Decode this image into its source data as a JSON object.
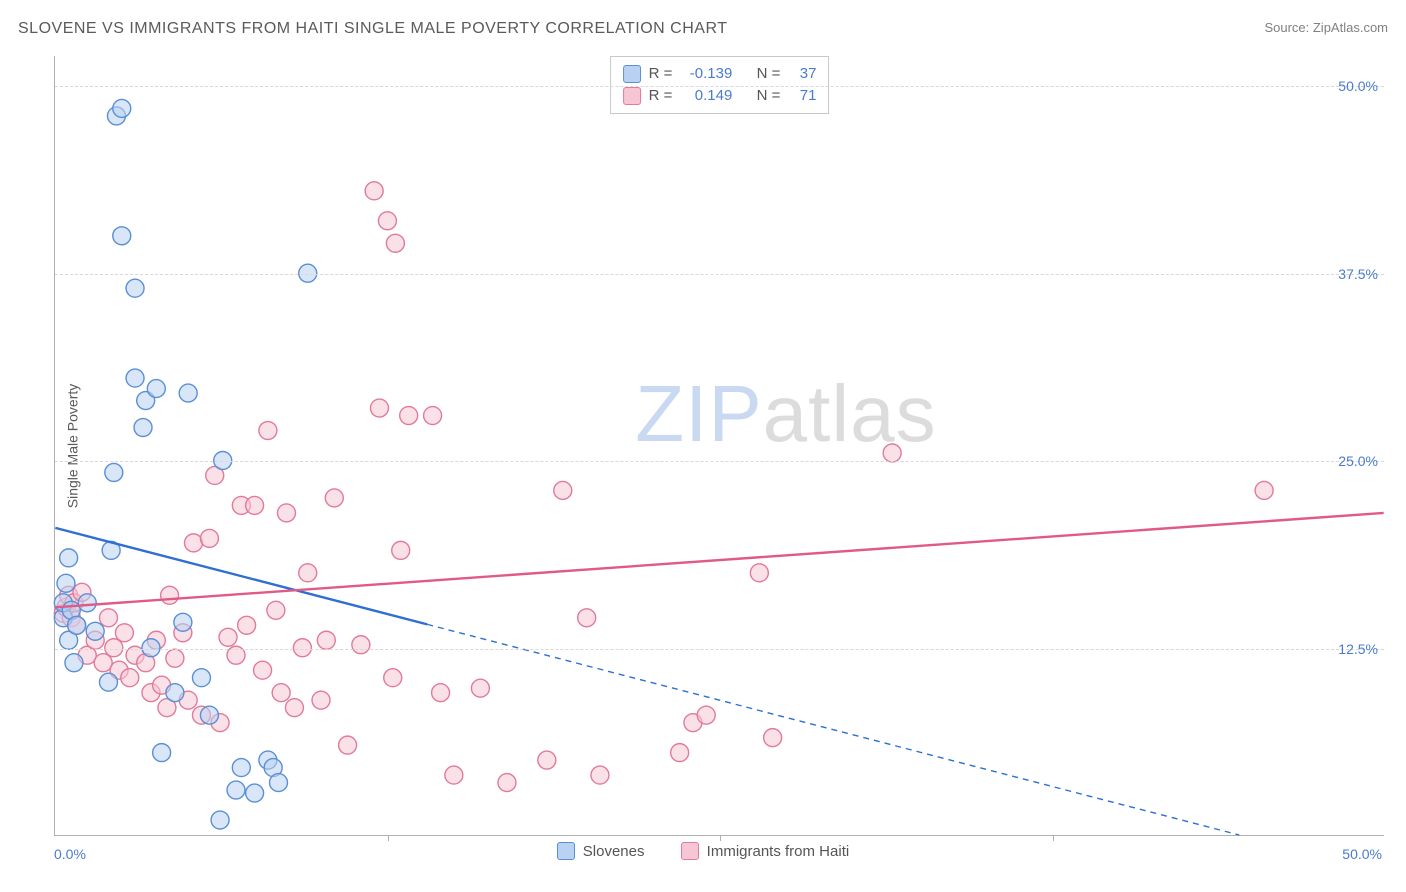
{
  "header": {
    "title": "SLOVENE VS IMMIGRANTS FROM HAITI SINGLE MALE POVERTY CORRELATION CHART",
    "source": "Source: ZipAtlas.com"
  },
  "chart": {
    "type": "scatter",
    "ylabel": "Single Male Poverty",
    "xlim": [
      0,
      50
    ],
    "ylim": [
      0,
      52
    ],
    "xtick_labels": [
      "0.0%",
      "50.0%"
    ],
    "xtick_marks": [
      12.5,
      25.0,
      37.5
    ],
    "yticks": [
      12.5,
      25.0,
      37.5,
      50.0
    ],
    "ytick_labels": [
      "12.5%",
      "25.0%",
      "37.5%",
      "50.0%"
    ],
    "grid_color": "#d8d8d8",
    "axis_color": "#b0b0b0",
    "background_color": "#ffffff",
    "marker_radius": 9,
    "marker_stroke_width": 1.4,
    "line_width": 2.4,
    "series": {
      "slovenes": {
        "label": "Slovenes",
        "color_fill": "#b9d2f3",
        "color_stroke": "#5a8fd6",
        "line_color": "#2e6fd1",
        "fill_opacity": 0.55,
        "R": "-0.139",
        "N": "37",
        "trend": {
          "y_at_x0": 20.5,
          "y_at_x50": -2.5,
          "solid_until_x": 14.0
        },
        "points": [
          [
            0.3,
            14.5
          ],
          [
            0.3,
            15.5
          ],
          [
            0.4,
            16.8
          ],
          [
            0.5,
            13.0
          ],
          [
            0.5,
            18.5
          ],
          [
            0.6,
            15.0
          ],
          [
            0.8,
            14.0
          ],
          [
            0.7,
            11.5
          ],
          [
            1.2,
            15.5
          ],
          [
            1.5,
            13.6
          ],
          [
            2.0,
            10.2
          ],
          [
            2.3,
            48.0
          ],
          [
            2.5,
            48.5
          ],
          [
            2.5,
            40.0
          ],
          [
            2.2,
            24.2
          ],
          [
            3.0,
            30.5
          ],
          [
            3.4,
            29.0
          ],
          [
            3.3,
            27.2
          ],
          [
            3.0,
            36.5
          ],
          [
            3.8,
            29.8
          ],
          [
            4.0,
            5.5
          ],
          [
            4.5,
            9.5
          ],
          [
            5.0,
            29.5
          ],
          [
            5.5,
            10.5
          ],
          [
            5.8,
            8.0
          ],
          [
            6.3,
            25.0
          ],
          [
            6.8,
            3.0
          ],
          [
            7.0,
            4.5
          ],
          [
            7.5,
            2.8
          ],
          [
            8.0,
            5.0
          ],
          [
            8.2,
            4.5
          ],
          [
            8.4,
            3.5
          ],
          [
            9.5,
            37.5
          ],
          [
            6.2,
            1.0
          ],
          [
            4.8,
            14.2
          ],
          [
            3.6,
            12.5
          ],
          [
            2.1,
            19.0
          ]
        ]
      },
      "haiti": {
        "label": "Immigrants from Haiti",
        "color_fill": "#f6c6d4",
        "color_stroke": "#e27a9a",
        "line_color": "#e05a87",
        "fill_opacity": 0.55,
        "R": "0.149",
        "N": "71",
        "trend": {
          "y_at_x0": 15.2,
          "y_at_x50": 21.5,
          "solid_until_x": 50.0
        },
        "points": [
          [
            0.3,
            14.8
          ],
          [
            0.4,
            15.2
          ],
          [
            0.5,
            16.0
          ],
          [
            0.6,
            14.5
          ],
          [
            0.7,
            15.5
          ],
          [
            0.8,
            14.0
          ],
          [
            1.0,
            16.2
          ],
          [
            1.2,
            12.0
          ],
          [
            1.5,
            13.0
          ],
          [
            1.8,
            11.5
          ],
          [
            2.0,
            14.5
          ],
          [
            2.2,
            12.5
          ],
          [
            2.4,
            11.0
          ],
          [
            2.6,
            13.5
          ],
          [
            2.8,
            10.5
          ],
          [
            3.0,
            12.0
          ],
          [
            3.4,
            11.5
          ],
          [
            3.6,
            9.5
          ],
          [
            3.8,
            13.0
          ],
          [
            4.0,
            10.0
          ],
          [
            4.2,
            8.5
          ],
          [
            4.5,
            11.8
          ],
          [
            4.8,
            13.5
          ],
          [
            5.0,
            9.0
          ],
          [
            5.2,
            19.5
          ],
          [
            5.5,
            8.0
          ],
          [
            5.8,
            19.8
          ],
          [
            6.0,
            24.0
          ],
          [
            6.2,
            7.5
          ],
          [
            6.5,
            13.2
          ],
          [
            6.8,
            12.0
          ],
          [
            7.0,
            22.0
          ],
          [
            7.2,
            14.0
          ],
          [
            7.5,
            22.0
          ],
          [
            7.8,
            11.0
          ],
          [
            8.0,
            27.0
          ],
          [
            8.3,
            15.0
          ],
          [
            8.5,
            9.5
          ],
          [
            8.7,
            21.5
          ],
          [
            9.0,
            8.5
          ],
          [
            9.3,
            12.5
          ],
          [
            9.5,
            17.5
          ],
          [
            10.0,
            9.0
          ],
          [
            10.2,
            13.0
          ],
          [
            10.5,
            22.5
          ],
          [
            11.0,
            6.0
          ],
          [
            11.5,
            12.7
          ],
          [
            12.0,
            43.0
          ],
          [
            12.2,
            28.5
          ],
          [
            12.5,
            41.0
          ],
          [
            12.8,
            39.5
          ],
          [
            13.0,
            19.0
          ],
          [
            13.3,
            28.0
          ],
          [
            14.2,
            28.0
          ],
          [
            14.5,
            9.5
          ],
          [
            15.0,
            4.0
          ],
          [
            16.0,
            9.8
          ],
          [
            17.0,
            3.5
          ],
          [
            18.5,
            5.0
          ],
          [
            19.1,
            23.0
          ],
          [
            20.0,
            14.5
          ],
          [
            20.5,
            4.0
          ],
          [
            23.5,
            5.5
          ],
          [
            24.0,
            7.5
          ],
          [
            24.5,
            8.0
          ],
          [
            26.5,
            17.5
          ],
          [
            27.0,
            6.5
          ],
          [
            31.5,
            25.5
          ],
          [
            45.5,
            23.0
          ],
          [
            12.7,
            10.5
          ],
          [
            4.3,
            16.0
          ]
        ]
      }
    },
    "legend_terms": {
      "R_label": "R =",
      "N_label": "N ="
    },
    "watermark": {
      "zip": "ZIP",
      "atlas": "atlas"
    }
  }
}
